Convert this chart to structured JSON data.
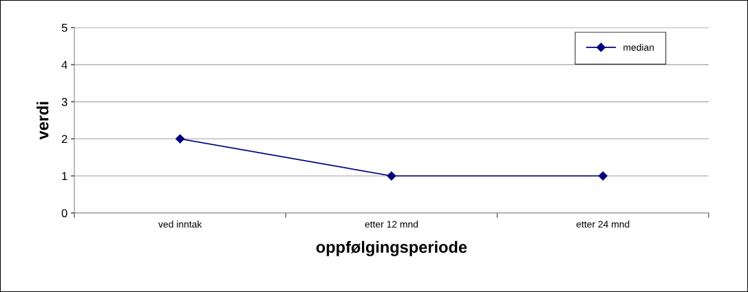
{
  "chart_data": {
    "type": "line",
    "xlabel": "oppfølgingsperiode",
    "ylabel": "verdi",
    "categories": [
      "ved inntak",
      "etter 12 mnd",
      "etter 24 mnd"
    ],
    "series": [
      {
        "name": "median",
        "color": "#000080",
        "values": [
          2,
          1,
          1
        ]
      }
    ],
    "ylim": [
      0,
      5
    ],
    "yticks": [
      0,
      1,
      2,
      3,
      4,
      5
    ],
    "grid": "y",
    "legend": "top right",
    "marker": "diamond",
    "line_style": "solid"
  }
}
